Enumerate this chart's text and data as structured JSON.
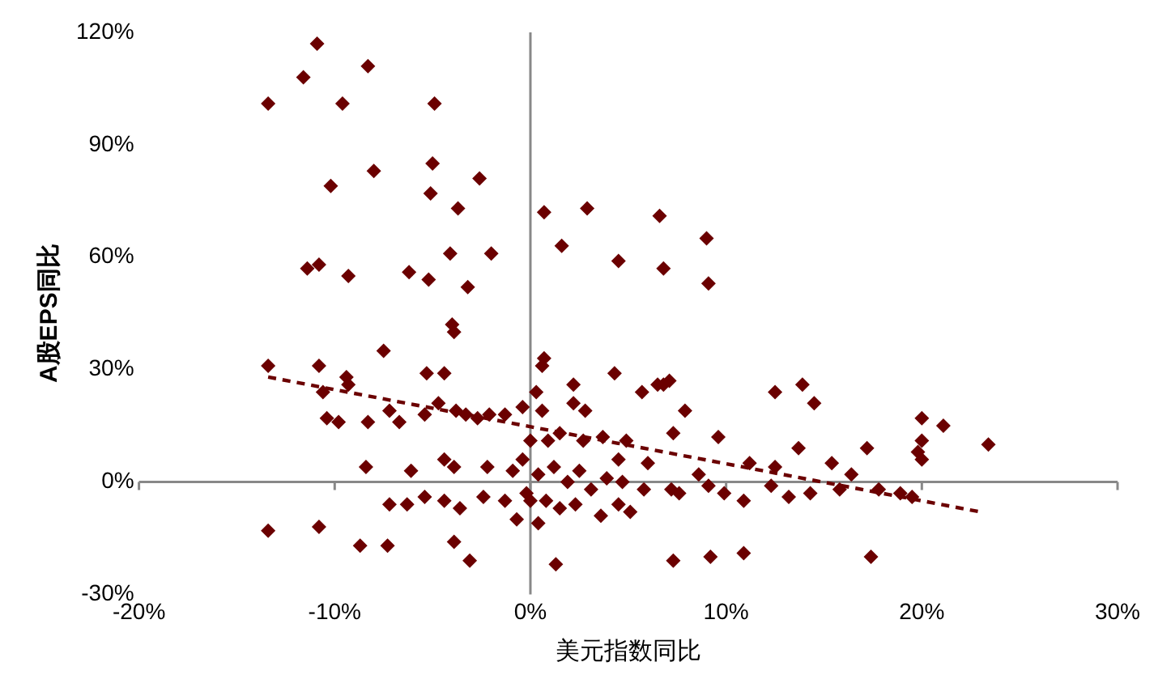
{
  "chart_data": {
    "type": "scatter",
    "xlabel": "美元指数同比",
    "ylabel": "A股EPS同比",
    "xlim": [
      -20,
      30
    ],
    "ylim": [
      -30,
      120
    ],
    "xticks": [
      {
        "value": -20,
        "label": "-20%"
      },
      {
        "value": -10,
        "label": "-10%"
      },
      {
        "value": 0,
        "label": "0%"
      },
      {
        "value": 10,
        "label": "10%"
      },
      {
        "value": 20,
        "label": "20%"
      },
      {
        "value": 30,
        "label": "30%"
      }
    ],
    "yticks": [
      {
        "value": -30,
        "label": "-30%"
      },
      {
        "value": 0,
        "label": "0%"
      },
      {
        "value": 30,
        "label": "30%"
      },
      {
        "value": 60,
        "label": "60%"
      },
      {
        "value": 90,
        "label": "90%"
      },
      {
        "value": 120,
        "label": "120%"
      }
    ],
    "legend": false,
    "series": [
      {
        "type": "scatter",
        "color": "#6b0000",
        "marker": "diamond",
        "x": [
          -13.4,
          -11.6,
          -10.9,
          -9.6,
          -8.3,
          -10.2,
          -8.0,
          -4.9,
          -5.0,
          -5.1,
          -3.7,
          -2.6,
          -11.4,
          -10.8,
          -9.3,
          -6.2,
          -4.1,
          -2.0,
          -5.2,
          -4.0,
          -3.9,
          -3.2,
          -7.5,
          -13.4,
          -10.8,
          -9.4,
          -9.3,
          -4.4,
          -5.3,
          -10.6,
          -10.4,
          -9.8,
          -8.3,
          -7.2,
          -5.4,
          -4.7,
          -6.7,
          -3.8,
          -3.3,
          -2.7,
          -2.1,
          -1.3,
          -0.4,
          -8.4,
          -6.1,
          -4.4,
          -3.9,
          -2.2,
          -0.9,
          -7.2,
          -6.3,
          -5.4,
          -4.4,
          -3.6,
          -2.4,
          -1.3,
          -0.7,
          -13.4,
          -10.8,
          -8.7,
          -7.3,
          -3.9,
          -3.1,
          0.7,
          1.6,
          2.9,
          6.6,
          9.0,
          9.1,
          6.8,
          4.5,
          0.7,
          0.6,
          0.3,
          0.6,
          2.2,
          2.2,
          2.8,
          4.3,
          5.7,
          6.5,
          6.8,
          7.1,
          7.3,
          7.9,
          9.6,
          12.5,
          13.9,
          14.5,
          3.7,
          1.5,
          2.7,
          4.9,
          4.5,
          6.0,
          8.6,
          11.2,
          12.5,
          13.7,
          15.4,
          16.4,
          17.2,
          20.0,
          21.1,
          23.4,
          20.0,
          20.0,
          19.8,
          0.4,
          1.2,
          1.9,
          2.5,
          3.1,
          3.9,
          4.7,
          5.8,
          7.2,
          7.6,
          9.1,
          9.9,
          10.9,
          12.3,
          13.2,
          14.3,
          15.8,
          17.8,
          18.9,
          19.5,
          0.8,
          1.5,
          2.3,
          3.6,
          4.5,
          5.1,
          0.4,
          1.3,
          7.3,
          9.2,
          10.9,
          17.4,
          0.9,
          0.0,
          -0.4,
          -0.2,
          0.0
        ],
        "values": [
          101,
          108,
          117,
          101,
          111,
          79,
          83,
          101,
          85,
          77,
          73,
          81,
          57,
          58,
          55,
          56,
          61,
          61,
          54,
          42,
          40,
          52,
          35,
          31,
          31,
          28,
          26,
          29,
          29,
          24,
          17,
          16,
          16,
          19,
          18,
          21,
          16,
          19,
          18,
          17,
          18,
          18,
          20,
          4,
          3,
          6,
          4,
          4,
          3,
          -6,
          -6,
          -4,
          -5,
          -7,
          -4,
          -5,
          -10,
          -13,
          -12,
          -17,
          -17,
          -16,
          -21,
          72,
          63,
          73,
          71,
          65,
          53,
          57,
          59,
          33,
          31,
          24,
          19,
          26,
          21,
          19,
          29,
          24,
          26,
          26,
          27,
          13,
          19,
          12,
          24,
          26,
          21,
          12,
          13,
          11,
          11,
          6,
          5,
          2,
          5,
          4,
          9,
          5,
          2,
          9,
          17,
          15,
          10,
          11,
          6,
          8,
          2,
          4,
          0,
          3,
          -2,
          1,
          0,
          -2,
          -2,
          -3,
          -1,
          -3,
          -5,
          -1,
          -4,
          -3,
          -2,
          -2,
          -3,
          -4,
          -5,
          -7,
          -6,
          -9,
          -6,
          -8,
          -11,
          -22,
          -21,
          -20,
          -19,
          -20,
          11,
          11,
          6,
          -3,
          -5
        ]
      },
      {
        "type": "line",
        "color": "#6b0000",
        "marker": "none",
        "line_style": "dashed",
        "x": [
          -13.4,
          23
        ],
        "values": [
          28,
          -8
        ]
      }
    ]
  }
}
